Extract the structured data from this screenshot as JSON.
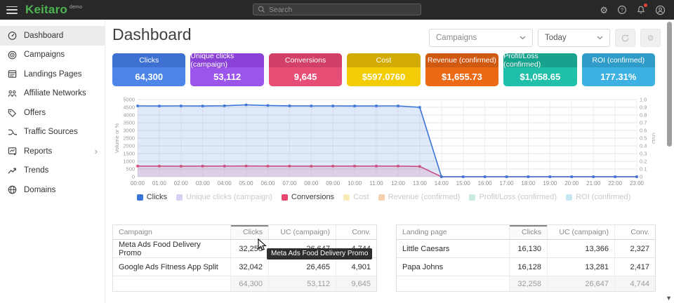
{
  "topbar": {
    "logo": "Keitaro",
    "logo_badge": "demo",
    "search_placeholder": "Search"
  },
  "sidebar": {
    "items": [
      {
        "label": "Dashboard",
        "icon": "dashboard-icon",
        "active": true
      },
      {
        "label": "Campaigns",
        "icon": "campaigns-icon"
      },
      {
        "label": "Landings Pages",
        "icon": "landing-pages-icon"
      },
      {
        "label": "Affiliate Networks",
        "icon": "affiliate-networks-icon"
      },
      {
        "label": "Offers",
        "icon": "offers-icon"
      },
      {
        "label": "Traffic Sources",
        "icon": "traffic-sources-icon"
      },
      {
        "label": "Reports",
        "icon": "reports-icon",
        "has_submenu": true,
        "chevron": "›"
      },
      {
        "label": "Trends",
        "icon": "trends-icon"
      },
      {
        "label": "Domains",
        "icon": "domains-icon"
      }
    ]
  },
  "header": {
    "title": "Dashboard",
    "campaign_filter": "Campaigns",
    "date_filter": "Today"
  },
  "metric_cards": [
    {
      "label": "Clicks",
      "value": "64,300",
      "header_color": "#3e70d1",
      "body_color": "#4d86e8"
    },
    {
      "label": "Unique clicks (campaign)",
      "value": "53,112",
      "header_color": "#8a43d6",
      "body_color": "#9c55ea"
    },
    {
      "label": "Conversions",
      "value": "9,645",
      "header_color": "#d23f67",
      "body_color": "#e64e76"
    },
    {
      "label": "Cost",
      "value": "$597.0760",
      "header_color": "#d2ab04",
      "body_color": "#f2cc05"
    },
    {
      "label": "Revenue (confirmed)",
      "value": "$1,655.73",
      "header_color": "#d05912",
      "body_color": "#ec6915"
    },
    {
      "label": "Profit/Loss (confirmed)",
      "value": "$1,058.65",
      "header_color": "#16a28d",
      "body_color": "#1fbfa9"
    },
    {
      "label": "ROI (confirmed)",
      "value": "177.31%",
      "header_color": "#2e9bc8",
      "body_color": "#3db1e2"
    }
  ],
  "chart_data": {
    "type": "area",
    "x_labels": [
      "00:00",
      "01:00",
      "02:00",
      "03:00",
      "04:00",
      "05:00",
      "06:00",
      "07:00",
      "08:00",
      "09:00",
      "10:00",
      "11:00",
      "12:00",
      "13:00",
      "14:00",
      "15:00",
      "16:00",
      "17:00",
      "18:00",
      "19:00",
      "20:00",
      "21:00",
      "22:00",
      "23:00"
    ],
    "ylabel_left": "Volume or %",
    "ylabel_right": "USD",
    "ylim_left": [
      0,
      5000
    ],
    "ylim_right": [
      0,
      1.0
    ],
    "y_ticks_left": [
      0,
      500,
      1000,
      1500,
      2000,
      2500,
      3000,
      3500,
      4000,
      4500,
      5000
    ],
    "y_ticks_right": [
      0,
      0.1,
      0.2,
      0.3,
      0.4,
      0.5,
      0.6,
      0.7,
      0.8,
      0.9,
      1.0
    ],
    "grid": true,
    "series": [
      {
        "name": "Clicks",
        "color": "#3a74d8",
        "values": [
          4590,
          4585,
          4590,
          4588,
          4602,
          4660,
          4618,
          4594,
          4590,
          4592,
          4588,
          4593,
          4590,
          4500,
          0,
          0,
          0,
          0,
          0,
          0,
          0,
          0,
          0,
          0
        ]
      },
      {
        "name": "Conversions",
        "color": "#e8486e",
        "values": [
          689,
          690,
          688,
          691,
          690,
          696,
          692,
          690,
          688,
          690,
          689,
          691,
          690,
          668,
          0,
          0,
          0,
          0,
          0,
          0,
          0,
          0,
          0,
          0
        ]
      }
    ]
  },
  "legend": [
    {
      "label": "Clicks",
      "color": "#3a74d8",
      "active": true,
      "label_color": "#3c3c3c"
    },
    {
      "label": "Unique clicks (campaign)",
      "color": "#d9cef3",
      "active": false,
      "label_color": "#c9c9c9"
    },
    {
      "label": "Conversions",
      "color": "#e8486e",
      "active": true,
      "label_color": "#3c3c3c"
    },
    {
      "label": "Cost",
      "color": "#f9ecb6",
      "active": false,
      "label_color": "#c9c9c9"
    },
    {
      "label": "Revenue (confirmed)",
      "color": "#f5cfae",
      "active": false,
      "label_color": "#c9c9c9"
    },
    {
      "label": "Profit/Loss (confirmed)",
      "color": "#c8ebe4",
      "active": false,
      "label_color": "#c9c9c9"
    },
    {
      "label": "ROI (confirmed)",
      "color": "#c8e7f5",
      "active": false,
      "label_color": "#c9c9c9"
    }
  ],
  "tables": [
    {
      "columns": [
        "Campaign",
        "Clicks",
        "UC (campaign)",
        "Conv."
      ],
      "sorted_column": "Clicks",
      "rows": [
        [
          "Meta Ads Food Delivery Promo",
          "32,258",
          "26,647",
          "4,744"
        ],
        [
          "Google Ads Fitness App Split",
          "32,042",
          "26,465",
          "4,901"
        ]
      ],
      "totals": [
        "",
        "64,300",
        "53,112",
        "9,645"
      ]
    },
    {
      "columns": [
        "Landing page",
        "Clicks",
        "UC (campaign)",
        "Conv."
      ],
      "sorted_column": "Clicks",
      "rows": [
        [
          "Little Caesars",
          "16,130",
          "13,366",
          "2,327"
        ],
        [
          "Papa Johns",
          "16,128",
          "13,281",
          "2,417"
        ]
      ],
      "totals": [
        "",
        "32,258",
        "26,647",
        "4,744"
      ]
    }
  ],
  "tooltip": {
    "text": "Meta Ads Food Delivery Promo"
  }
}
